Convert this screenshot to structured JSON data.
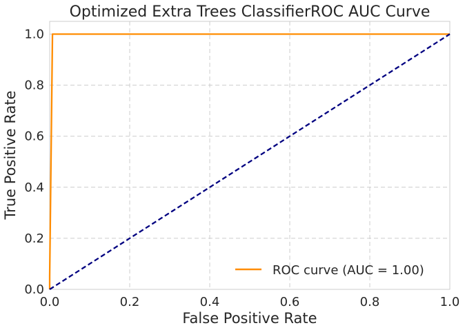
{
  "chart_data": {
    "type": "line",
    "title": "Optimized Extra Trees ClassifierROC AUC Curve",
    "xlabel": "False Positive Rate",
    "ylabel": "True Positive Rate",
    "xlim": [
      0.0,
      1.0
    ],
    "ylim": [
      0.0,
      1.05
    ],
    "xticks": [
      "0.0",
      "0.2",
      "0.4",
      "0.6",
      "0.8",
      "1.0"
    ],
    "yticks": [
      "0.0",
      "0.2",
      "0.4",
      "0.6",
      "0.8",
      "1.0"
    ],
    "grid": true,
    "legend_position": "lower-right",
    "series": [
      {
        "name": "ROC curve (AUC = 1.00)",
        "color": "#ff8c00",
        "style": "solid",
        "x": [
          0.0,
          0.0,
          0.007,
          1.0
        ],
        "y": [
          0.0,
          0.05,
          1.0,
          1.0
        ]
      },
      {
        "color": "#000080",
        "style": "dashed",
        "x": [
          0.0,
          1.0
        ],
        "y": [
          0.0,
          1.0
        ]
      }
    ]
  }
}
